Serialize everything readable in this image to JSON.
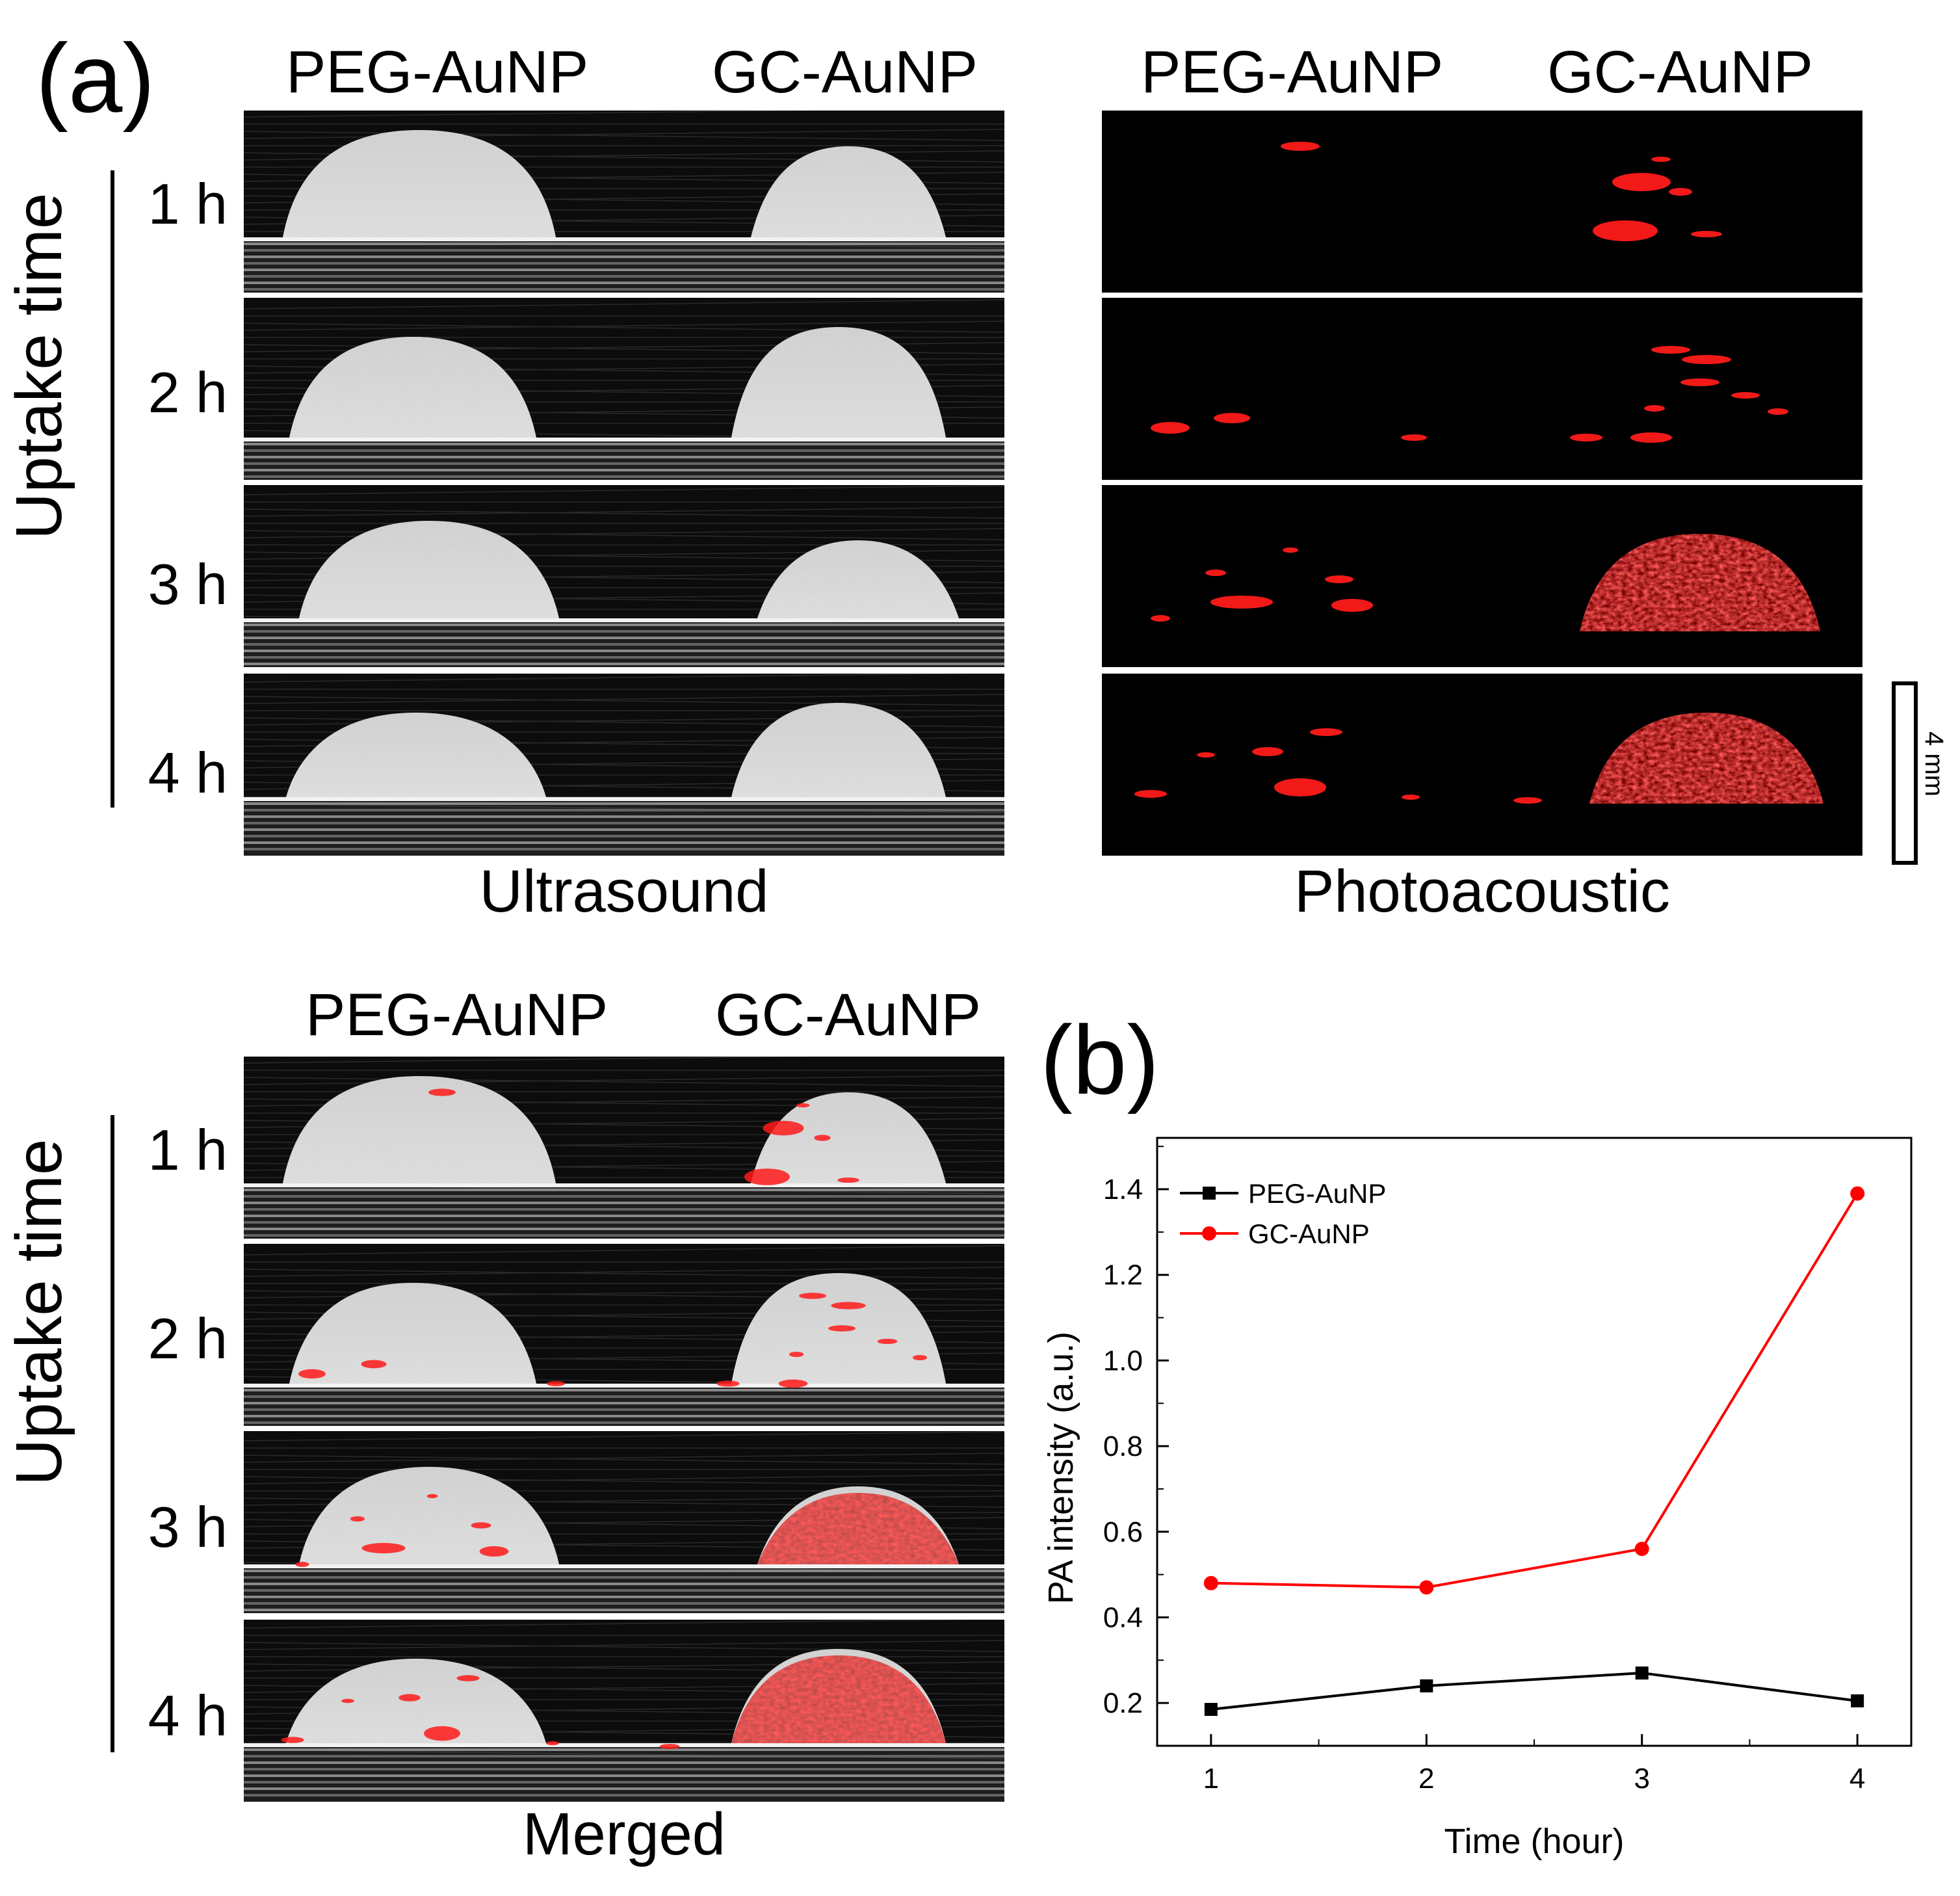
{
  "panel_a": {
    "label": "(a)",
    "col1_label": "PEG-AuNP",
    "col2_label": "GC-AuNP",
    "y_title": "Uptake time",
    "times": [
      "1 h",
      "2 h",
      "3 h",
      "4 h"
    ],
    "ultrasound_caption": "Ultrasound",
    "photoacoustic_caption": "Photoacoustic",
    "merged_caption": "Merged",
    "scale_bar_label": "4 mm"
  },
  "panel_b": {
    "label": "(b)"
  },
  "colors": {
    "pa_red": "#ff1a1a",
    "gc_line": "#ff0000",
    "peg_line": "#000000"
  },
  "chart_data": {
    "type": "line",
    "x": [
      1,
      2,
      3,
      4
    ],
    "series": [
      {
        "name": "PEG-AuNP",
        "values": [
          0.185,
          0.24,
          0.27,
          0.205
        ],
        "color": "#000000",
        "marker": "square"
      },
      {
        "name": "GC-AuNP",
        "values": [
          0.48,
          0.47,
          0.56,
          1.39
        ],
        "color": "#ff0000",
        "marker": "circle"
      }
    ],
    "xlabel": "Time (hour)",
    "ylabel": "PA intensity (a.u.)",
    "xlim": [
      0.75,
      4.25
    ],
    "ylim": [
      0.1,
      1.52
    ],
    "xticks": [
      1,
      2,
      3,
      4
    ],
    "xtick_labels": [
      "1",
      "2",
      "3",
      "4"
    ],
    "yticks": [
      0.2,
      0.4,
      0.6,
      0.8,
      1.0,
      1.2,
      1.4
    ],
    "ytick_labels": [
      "0.2",
      "0.4",
      "0.6",
      "0.8",
      "1.0",
      "1.2",
      "1.4"
    ],
    "legend_position": "top-left"
  }
}
